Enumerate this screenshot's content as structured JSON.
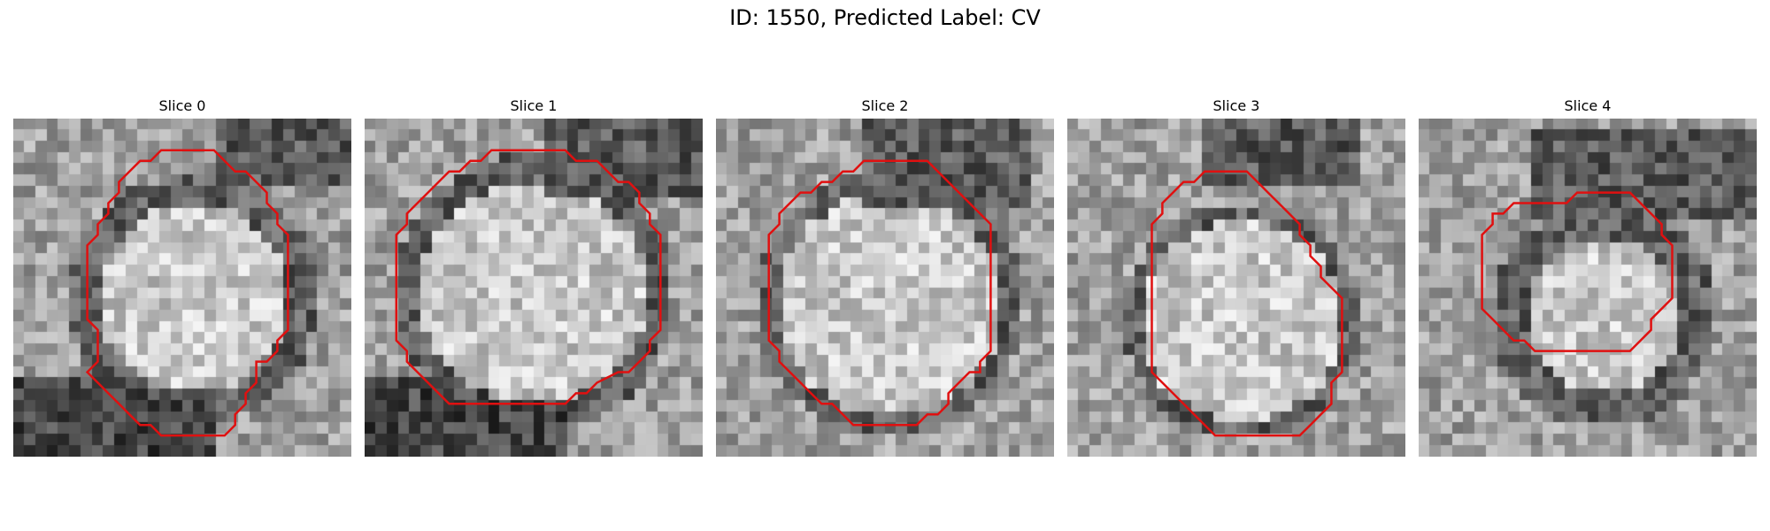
{
  "figure": {
    "title": "ID: 1550, Predicted Label: CV"
  },
  "slices": [
    {
      "label": "Slice 0"
    },
    {
      "label": "Slice 1"
    },
    {
      "label": "Slice 2"
    },
    {
      "label": "Slice 3"
    },
    {
      "label": "Slice 4"
    }
  ],
  "colors": {
    "contour": "#e01010",
    "background": "#ffffff"
  }
}
